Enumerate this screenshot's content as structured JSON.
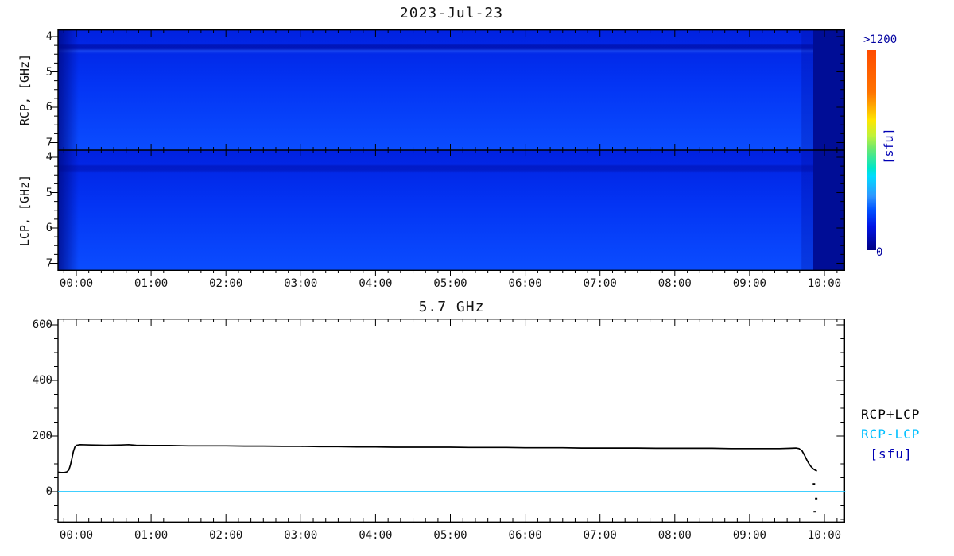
{
  "chart_data": [
    {
      "type": "heatmap",
      "title": "2023-Jul-23",
      "x_ticks": [
        "00:00",
        "01:00",
        "02:00",
        "03:00",
        "04:00",
        "05:00",
        "06:00",
        "07:00",
        "08:00",
        "09:00",
        "10:00"
      ],
      "x_range_hours": [
        -0.245,
        10.28
      ],
      "x_minor_step_hours": 0.1667,
      "panels": [
        {
          "name": "RCP",
          "ylabel": "RCP, [GHz]",
          "y_ticks": [
            "4",
            "5",
            "6",
            "7"
          ],
          "y_tick_values": [
            4,
            5,
            6,
            7
          ],
          "y_minor_step_ghz": 0.25,
          "y_range_ghz": [
            3.8,
            7.2
          ]
        },
        {
          "name": "LCP",
          "ylabel": "LCP, [GHz]",
          "y_ticks": [
            "4",
            "5",
            "6",
            "7"
          ],
          "y_tick_values": [
            4,
            5,
            6,
            7
          ],
          "y_minor_step_ghz": 0.25,
          "y_range_ghz": [
            3.8,
            7.2
          ]
        }
      ],
      "background": {
        "base_top": "#0121e0",
        "base_mid": "#0334f4",
        "base_bottom": "#0b4dff",
        "left_edge_dark": "rgba(0,8,130,0.8)",
        "pre_band_shade": "rgba(0,10,150,0.28)",
        "right_dark_band": "#000d96",
        "right_band_start_hour": 9.85,
        "stripe_dark": "rgba(0,0,130,0.45)",
        "stripe_light": "rgba(70,130,255,0.30)"
      },
      "colorbar": {
        "max_label": ">1200",
        "min_label": "0",
        "unit_label": "[sfu]",
        "gradient_stops": [
          "#ff4b00 0%",
          "#ff7300 21%",
          "#ffa000 27%",
          "#ffe600 35%",
          "#bef23c 43%",
          "#6ee86e 49%",
          "#00e6c8 59%",
          "#00dcff 63%",
          "#2e96ff 73%",
          "#0050ff 80%",
          "#0014e6 88%",
          "#000082 100%"
        ]
      }
    },
    {
      "type": "line",
      "title": "5.7 GHz",
      "unit_label": "[sfu]",
      "unit_label_color": "#0000b4",
      "x_ticks": [
        "00:00",
        "01:00",
        "02:00",
        "03:00",
        "04:00",
        "05:00",
        "06:00",
        "07:00",
        "08:00",
        "09:00",
        "10:00"
      ],
      "x_range_hours": [
        -0.245,
        10.28
      ],
      "x_minor_step_hours": 0.1667,
      "y_ticks": [
        "600",
        "400",
        "200",
        "0"
      ],
      "y_tick_values": [
        600,
        400,
        200,
        0
      ],
      "y_minor_step": 50,
      "ylim": [
        -111,
        623
      ],
      "series": [
        {
          "name": "RCP+LCP",
          "color": "#000000",
          "points": [
            [
              -0.245,
              70
            ],
            [
              -0.2,
              69
            ],
            [
              -0.16,
              69
            ],
            [
              -0.13,
              71
            ],
            [
              -0.1,
              78
            ],
            [
              -0.08,
              95
            ],
            [
              -0.06,
              118
            ],
            [
              -0.04,
              143
            ],
            [
              -0.02,
              160
            ],
            [
              0.0,
              167
            ],
            [
              0.05,
              169
            ],
            [
              0.2,
              168
            ],
            [
              0.4,
              167
            ],
            [
              0.6,
              168
            ],
            [
              0.7,
              169
            ],
            [
              0.8,
              167
            ],
            [
              1.0,
              166
            ],
            [
              1.25,
              166
            ],
            [
              1.5,
              165
            ],
            [
              1.75,
              165
            ],
            [
              2.0,
              165
            ],
            [
              2.25,
              164
            ],
            [
              2.5,
              164
            ],
            [
              2.75,
              163
            ],
            [
              3.0,
              163
            ],
            [
              3.25,
              162
            ],
            [
              3.5,
              162
            ],
            [
              3.75,
              161
            ],
            [
              4.0,
              161
            ],
            [
              4.25,
              160
            ],
            [
              4.5,
              160
            ],
            [
              4.75,
              160
            ],
            [
              5.0,
              160
            ],
            [
              5.25,
              159
            ],
            [
              5.5,
              159
            ],
            [
              5.75,
              159
            ],
            [
              6.0,
              158
            ],
            [
              6.25,
              158
            ],
            [
              6.5,
              158
            ],
            [
              6.75,
              157
            ],
            [
              7.0,
              157
            ],
            [
              7.25,
              157
            ],
            [
              7.5,
              157
            ],
            [
              7.75,
              156
            ],
            [
              8.0,
              156
            ],
            [
              8.25,
              156
            ],
            [
              8.5,
              156
            ],
            [
              8.75,
              155
            ],
            [
              9.0,
              155
            ],
            [
              9.2,
              155
            ],
            [
              9.4,
              155
            ],
            [
              9.55,
              156
            ],
            [
              9.62,
              157
            ],
            [
              9.66,
              155
            ],
            [
              9.7,
              147
            ],
            [
              9.73,
              133
            ],
            [
              9.76,
              117
            ],
            [
              9.79,
              102
            ],
            [
              9.82,
              90
            ],
            [
              9.85,
              82
            ],
            [
              9.88,
              77
            ],
            [
              9.9,
              75
            ]
          ]
        },
        {
          "name": "RCP-LCP",
          "color": "#00bfff",
          "points": [
            [
              -0.245,
              0
            ],
            [
              10.28,
              0
            ]
          ]
        }
      ],
      "scatter_points": {
        "color": "#000000",
        "points": [
          [
            9.86,
            28
          ],
          [
            9.89,
            -25
          ],
          [
            9.87,
            -72
          ]
        ]
      }
    }
  ]
}
